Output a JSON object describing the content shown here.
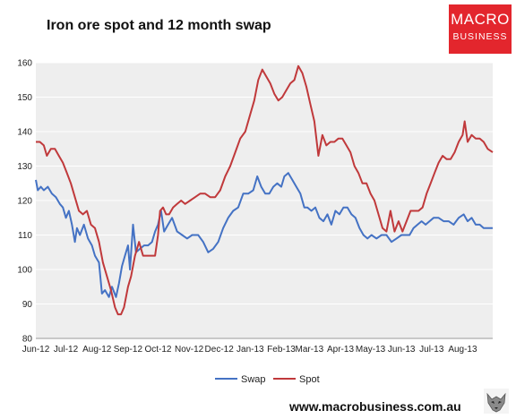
{
  "chart_title": "Iron ore spot and 12 month swap",
  "logo": {
    "line1": "MACRO",
    "line2": "BUSINESS"
  },
  "footer_url": "www.macrobusiness.com.au",
  "colors": {
    "swap": "#4472c4",
    "spot": "#c0393b",
    "plot_bg": "#eeeeee",
    "grid": "#ffffff",
    "brand": "#e3262d"
  },
  "chart_data": {
    "type": "line",
    "title": "Iron ore spot and 12 month swap",
    "xlabel": "",
    "ylabel": "",
    "ylim": [
      80,
      160
    ],
    "yticks": [
      80,
      90,
      100,
      110,
      120,
      130,
      140,
      150,
      160
    ],
    "xlim": [
      "2012-06-01",
      "2013-08-31"
    ],
    "xtick_labels": [
      {
        "date": "2012-06-01",
        "label": "Jun-12"
      },
      {
        "date": "2012-07-01",
        "label": "Jul-12"
      },
      {
        "date": "2012-08-01",
        "label": "Aug-12"
      },
      {
        "date": "2012-09-01",
        "label": "Sep-12"
      },
      {
        "date": "2012-10-01",
        "label": "Oct-12"
      },
      {
        "date": "2012-11-01",
        "label": "Nov-12"
      },
      {
        "date": "2012-12-01",
        "label": "Dec-12"
      },
      {
        "date": "2013-01-01",
        "label": "Jan-13"
      },
      {
        "date": "2013-02-01",
        "label": "Feb-13"
      },
      {
        "date": "2013-03-01",
        "label": "Mar-13"
      },
      {
        "date": "2013-04-01",
        "label": "Apr-13"
      },
      {
        "date": "2013-05-01",
        "label": "May-13"
      },
      {
        "date": "2013-06-01",
        "label": "Jun-13"
      },
      {
        "date": "2013-07-01",
        "label": "Jul-13"
      },
      {
        "date": "2013-08-01",
        "label": "Aug-13"
      }
    ],
    "grid": "horizontal",
    "legend": "bottom-center",
    "series": [
      {
        "name": "Swap",
        "points": [
          [
            "2012-06-01",
            126
          ],
          [
            "2012-06-03",
            123
          ],
          [
            "2012-06-06",
            124
          ],
          [
            "2012-06-09",
            123
          ],
          [
            "2012-06-13",
            124
          ],
          [
            "2012-06-17",
            122
          ],
          [
            "2012-06-21",
            121
          ],
          [
            "2012-06-25",
            119
          ],
          [
            "2012-06-28",
            118
          ],
          [
            "2012-07-01",
            115
          ],
          [
            "2012-07-04",
            117
          ],
          [
            "2012-07-07",
            113
          ],
          [
            "2012-07-10",
            108
          ],
          [
            "2012-07-12",
            112
          ],
          [
            "2012-07-15",
            110
          ],
          [
            "2012-07-19",
            113
          ],
          [
            "2012-07-23",
            109
          ],
          [
            "2012-07-27",
            107
          ],
          [
            "2012-07-30",
            104
          ],
          [
            "2012-08-03",
            102
          ],
          [
            "2012-08-06",
            93
          ],
          [
            "2012-08-09",
            94
          ],
          [
            "2012-08-13",
            92
          ],
          [
            "2012-08-16",
            95
          ],
          [
            "2012-08-20",
            92
          ],
          [
            "2012-08-23",
            96
          ],
          [
            "2012-08-26",
            101
          ],
          [
            "2012-08-29",
            104
          ],
          [
            "2012-09-01",
            107
          ],
          [
            "2012-09-03",
            100
          ],
          [
            "2012-09-06",
            113
          ],
          [
            "2012-09-09",
            105
          ],
          [
            "2012-09-13",
            106
          ],
          [
            "2012-09-17",
            107
          ],
          [
            "2012-09-21",
            107
          ],
          [
            "2012-09-25",
            108
          ],
          [
            "2012-09-28",
            111
          ],
          [
            "2012-10-01",
            113
          ],
          [
            "2012-10-04",
            117
          ],
          [
            "2012-10-07",
            111
          ],
          [
            "2012-10-11",
            113
          ],
          [
            "2012-10-15",
            115
          ],
          [
            "2012-10-20",
            111
          ],
          [
            "2012-10-25",
            110
          ],
          [
            "2012-10-30",
            109
          ],
          [
            "2012-11-04",
            110
          ],
          [
            "2012-11-10",
            110
          ],
          [
            "2012-11-15",
            108
          ],
          [
            "2012-11-20",
            105
          ],
          [
            "2012-11-25",
            106
          ],
          [
            "2012-11-30",
            108
          ],
          [
            "2012-12-05",
            112
          ],
          [
            "2012-12-10",
            115
          ],
          [
            "2012-12-15",
            117
          ],
          [
            "2012-12-20",
            118
          ],
          [
            "2012-12-25",
            122
          ],
          [
            "2012-12-30",
            122
          ],
          [
            "2013-01-04",
            123
          ],
          [
            "2013-01-08",
            127
          ],
          [
            "2013-01-12",
            124
          ],
          [
            "2013-01-16",
            122
          ],
          [
            "2013-01-20",
            122
          ],
          [
            "2013-01-24",
            124
          ],
          [
            "2013-01-28",
            125
          ],
          [
            "2013-02-01",
            124
          ],
          [
            "2013-02-04",
            127
          ],
          [
            "2013-02-08",
            128
          ],
          [
            "2013-02-12",
            126
          ],
          [
            "2013-02-16",
            124
          ],
          [
            "2013-02-20",
            122
          ],
          [
            "2013-02-24",
            118
          ],
          [
            "2013-02-27",
            118
          ],
          [
            "2013-03-03",
            117
          ],
          [
            "2013-03-07",
            118
          ],
          [
            "2013-03-11",
            115
          ],
          [
            "2013-03-15",
            114
          ],
          [
            "2013-03-19",
            116
          ],
          [
            "2013-03-23",
            113
          ],
          [
            "2013-03-27",
            117
          ],
          [
            "2013-03-31",
            116
          ],
          [
            "2013-04-04",
            118
          ],
          [
            "2013-04-08",
            118
          ],
          [
            "2013-04-12",
            116
          ],
          [
            "2013-04-16",
            115
          ],
          [
            "2013-04-20",
            112
          ],
          [
            "2013-04-24",
            110
          ],
          [
            "2013-04-28",
            109
          ],
          [
            "2013-05-02",
            110
          ],
          [
            "2013-05-07",
            109
          ],
          [
            "2013-05-12",
            110
          ],
          [
            "2013-05-17",
            110
          ],
          [
            "2013-05-22",
            108
          ],
          [
            "2013-05-27",
            109
          ],
          [
            "2013-06-01",
            110
          ],
          [
            "2013-06-05",
            110
          ],
          [
            "2013-06-09",
            110
          ],
          [
            "2013-06-13",
            112
          ],
          [
            "2013-06-17",
            113
          ],
          [
            "2013-06-21",
            114
          ],
          [
            "2013-06-25",
            113
          ],
          [
            "2013-06-29",
            114
          ],
          [
            "2013-07-03",
            115
          ],
          [
            "2013-07-08",
            115
          ],
          [
            "2013-07-13",
            114
          ],
          [
            "2013-07-18",
            114
          ],
          [
            "2013-07-23",
            113
          ],
          [
            "2013-07-28",
            115
          ],
          [
            "2013-08-02",
            116
          ],
          [
            "2013-08-06",
            114
          ],
          [
            "2013-08-10",
            115
          ],
          [
            "2013-08-14",
            113
          ],
          [
            "2013-08-18",
            113
          ],
          [
            "2013-08-22",
            112
          ],
          [
            "2013-08-26",
            112
          ],
          [
            "2013-08-31",
            112
          ]
        ]
      },
      {
        "name": "Spot",
        "points": [
          [
            "2012-06-01",
            137
          ],
          [
            "2012-06-05",
            137
          ],
          [
            "2012-06-09",
            136
          ],
          [
            "2012-06-12",
            133
          ],
          [
            "2012-06-16",
            135
          ],
          [
            "2012-06-20",
            135
          ],
          [
            "2012-06-24",
            133
          ],
          [
            "2012-06-28",
            131
          ],
          [
            "2012-07-02",
            128
          ],
          [
            "2012-07-06",
            125
          ],
          [
            "2012-07-10",
            121
          ],
          [
            "2012-07-14",
            117
          ],
          [
            "2012-07-18",
            116
          ],
          [
            "2012-07-22",
            117
          ],
          [
            "2012-07-26",
            113
          ],
          [
            "2012-07-30",
            112
          ],
          [
            "2012-08-03",
            108
          ],
          [
            "2012-08-07",
            102
          ],
          [
            "2012-08-11",
            98
          ],
          [
            "2012-08-15",
            94
          ],
          [
            "2012-08-19",
            89
          ],
          [
            "2012-08-22",
            87
          ],
          [
            "2012-08-25",
            87
          ],
          [
            "2012-08-28",
            89
          ],
          [
            "2012-09-01",
            95
          ],
          [
            "2012-09-04",
            98
          ],
          [
            "2012-09-08",
            104
          ],
          [
            "2012-09-12",
            108
          ],
          [
            "2012-09-16",
            104
          ],
          [
            "2012-09-20",
            104
          ],
          [
            "2012-09-24",
            104
          ],
          [
            "2012-09-28",
            104
          ],
          [
            "2012-10-01",
            110
          ],
          [
            "2012-10-03",
            117
          ],
          [
            "2012-10-06",
            118
          ],
          [
            "2012-10-09",
            116
          ],
          [
            "2012-10-12",
            116
          ],
          [
            "2012-10-16",
            118
          ],
          [
            "2012-10-20",
            119
          ],
          [
            "2012-10-24",
            120
          ],
          [
            "2012-10-28",
            119
          ],
          [
            "2012-11-02",
            120
          ],
          [
            "2012-11-07",
            121
          ],
          [
            "2012-11-12",
            122
          ],
          [
            "2012-11-17",
            122
          ],
          [
            "2012-11-22",
            121
          ],
          [
            "2012-11-27",
            121
          ],
          [
            "2012-12-02",
            123
          ],
          [
            "2012-12-07",
            127
          ],
          [
            "2012-12-12",
            130
          ],
          [
            "2012-12-17",
            134
          ],
          [
            "2012-12-22",
            138
          ],
          [
            "2012-12-27",
            140
          ],
          [
            "2013-01-01",
            145
          ],
          [
            "2013-01-05",
            149
          ],
          [
            "2013-01-09",
            155
          ],
          [
            "2013-01-13",
            158
          ],
          [
            "2013-01-17",
            156
          ],
          [
            "2013-01-21",
            154
          ],
          [
            "2013-01-25",
            151
          ],
          [
            "2013-01-29",
            149
          ],
          [
            "2013-02-02",
            150
          ],
          [
            "2013-02-06",
            152
          ],
          [
            "2013-02-10",
            154
          ],
          [
            "2013-02-14",
            155
          ],
          [
            "2013-02-18",
            159
          ],
          [
            "2013-02-22",
            157
          ],
          [
            "2013-02-26",
            153
          ],
          [
            "2013-03-02",
            148
          ],
          [
            "2013-03-06",
            143
          ],
          [
            "2013-03-10",
            133
          ],
          [
            "2013-03-14",
            139
          ],
          [
            "2013-03-18",
            136
          ],
          [
            "2013-03-22",
            137
          ],
          [
            "2013-03-26",
            137
          ],
          [
            "2013-03-30",
            138
          ],
          [
            "2013-04-03",
            138
          ],
          [
            "2013-04-07",
            136
          ],
          [
            "2013-04-11",
            134
          ],
          [
            "2013-04-15",
            130
          ],
          [
            "2013-04-19",
            128
          ],
          [
            "2013-04-23",
            125
          ],
          [
            "2013-04-27",
            125
          ],
          [
            "2013-05-01",
            122
          ],
          [
            "2013-05-05",
            120
          ],
          [
            "2013-05-09",
            116
          ],
          [
            "2013-05-13",
            112
          ],
          [
            "2013-05-17",
            111
          ],
          [
            "2013-05-21",
            117
          ],
          [
            "2013-05-25",
            111
          ],
          [
            "2013-05-29",
            114
          ],
          [
            "2013-06-02",
            111
          ],
          [
            "2013-06-06",
            114
          ],
          [
            "2013-06-10",
            117
          ],
          [
            "2013-06-14",
            117
          ],
          [
            "2013-06-18",
            117
          ],
          [
            "2013-06-22",
            118
          ],
          [
            "2013-06-26",
            122
          ],
          [
            "2013-06-30",
            125
          ],
          [
            "2013-07-04",
            128
          ],
          [
            "2013-07-08",
            131
          ],
          [
            "2013-07-12",
            133
          ],
          [
            "2013-07-16",
            132
          ],
          [
            "2013-07-20",
            132
          ],
          [
            "2013-07-24",
            134
          ],
          [
            "2013-07-28",
            137
          ],
          [
            "2013-08-01",
            139
          ],
          [
            "2013-08-03",
            143
          ],
          [
            "2013-08-06",
            137
          ],
          [
            "2013-08-10",
            139
          ],
          [
            "2013-08-14",
            138
          ],
          [
            "2013-08-18",
            138
          ],
          [
            "2013-08-22",
            137
          ],
          [
            "2013-08-26",
            135
          ],
          [
            "2013-08-31",
            134
          ]
        ]
      }
    ]
  }
}
